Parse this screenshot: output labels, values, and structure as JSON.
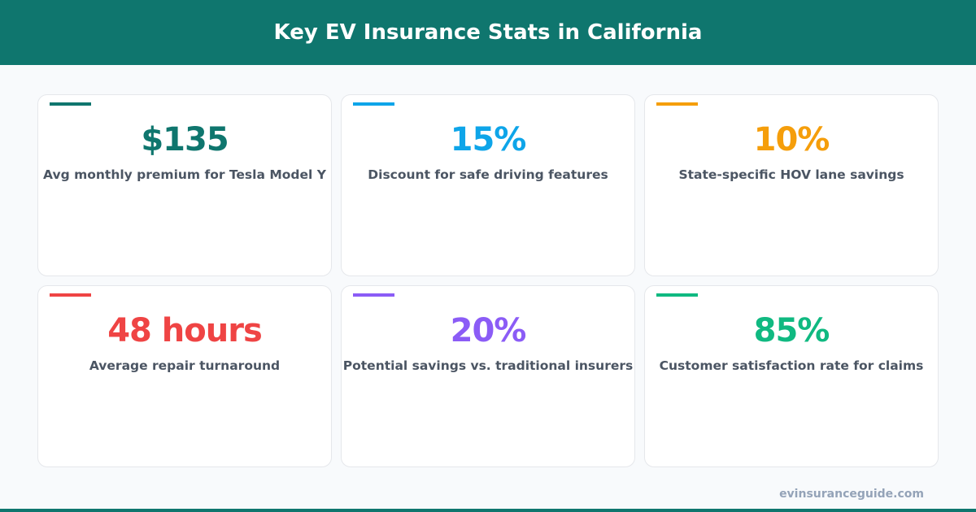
{
  "title": "Key EV Insurance Stats in California",
  "stats": [
    {
      "value": "$135",
      "label": "Avg monthly premium for Tesla Model Y",
      "color": "#0f766e"
    },
    {
      "value": "15%",
      "label": "Discount for safe driving features",
      "color": "#0ea5e9"
    },
    {
      "value": "10%",
      "label": "State-specific HOV lane savings",
      "color": "#f59e0b"
    },
    {
      "value": "48 hours",
      "label": "Average repair turnaround",
      "color": "#ef4444"
    },
    {
      "value": "20%",
      "label": "Potential savings vs. traditional insurers",
      "color": "#8b5cf6"
    },
    {
      "value": "85%",
      "label": "Customer satisfaction rate for claims",
      "color": "#10b981"
    }
  ],
  "footer": "evinsuranceguide.com"
}
